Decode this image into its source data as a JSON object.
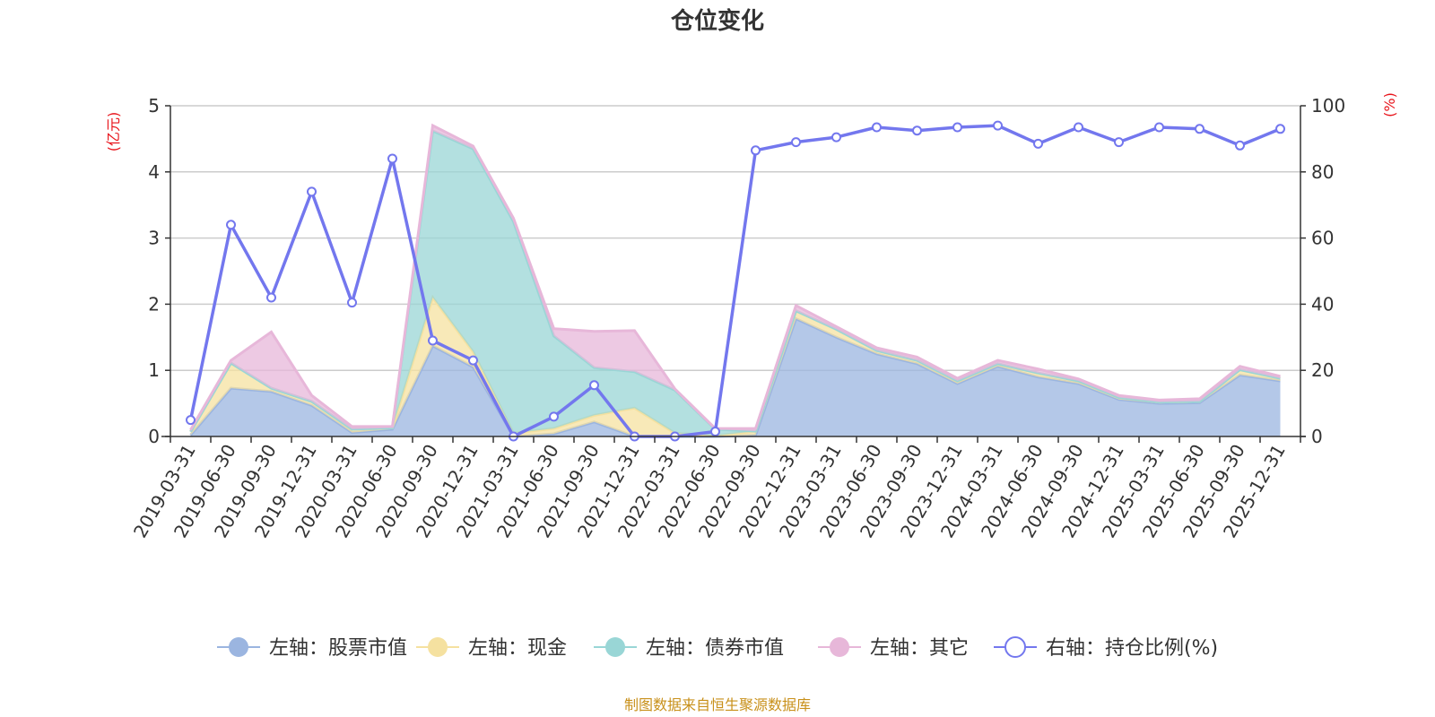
{
  "chart_data": {
    "type": "area",
    "title": "仓位变化",
    "left_unit": "(亿元)",
    "right_unit": "(%)",
    "categories": [
      "2019-03-31",
      "2019-06-30",
      "2019-09-30",
      "2019-12-31",
      "2020-03-31",
      "2020-06-30",
      "2020-09-30",
      "2020-12-31",
      "2021-03-31",
      "2021-06-30",
      "2021-09-30",
      "2021-12-31",
      "2022-03-31",
      "2022-06-30",
      "2022-09-30",
      "2022-12-31",
      "2023-03-31",
      "2023-06-30",
      "2023-09-30",
      "2023-12-31",
      "2024-03-31",
      "2024-06-30",
      "2024-09-30",
      "2024-12-31",
      "2025-03-31",
      "2025-06-30",
      "2025-09-30",
      "2025-12-31"
    ],
    "y_left": {
      "min": 0,
      "max": 5,
      "ticks": [
        0,
        1,
        2,
        3,
        4,
        5
      ]
    },
    "y_right": {
      "min": 0,
      "max": 100,
      "ticks": [
        0,
        20,
        40,
        60,
        80,
        100
      ]
    },
    "series": [
      {
        "name": "左轴：股票市值",
        "axis": "left",
        "stack": true,
        "color": "#9bb5e0",
        "values": [
          0.02,
          0.73,
          0.68,
          0.47,
          0.06,
          0.11,
          1.37,
          1.05,
          0.0,
          0.04,
          0.22,
          0.0,
          0.0,
          0.0,
          0.02,
          1.78,
          1.5,
          1.25,
          1.1,
          0.8,
          1.06,
          0.9,
          0.8,
          0.56,
          0.5,
          0.51,
          0.93,
          0.84
        ]
      },
      {
        "name": "左轴：现金",
        "axis": "left",
        "stack": true,
        "color": "#f5e1a0",
        "values": [
          0.05,
          0.38,
          0.05,
          0.06,
          0.05,
          0.02,
          0.73,
          0.23,
          0.05,
          0.08,
          0.1,
          0.43,
          0.05,
          0.01,
          0.06,
          0.12,
          0.12,
          0.05,
          0.05,
          0.04,
          0.04,
          0.06,
          0.04,
          0.03,
          0.02,
          0.02,
          0.08,
          0.04
        ]
      },
      {
        "name": "左轴：债券市值",
        "axis": "left",
        "stack": true,
        "color": "#99d6d6",
        "values": [
          0,
          0,
          0,
          0,
          0,
          0,
          2.52,
          3.07,
          3.2,
          1.4,
          0.72,
          0.55,
          0.65,
          0.1,
          0,
          0,
          0,
          0,
          0,
          0,
          0,
          0,
          0,
          0,
          0,
          0,
          0,
          0
        ]
      },
      {
        "name": "左轴：其它",
        "axis": "left",
        "stack": true,
        "color": "#e7b7d9",
        "values": [
          0.03,
          0.04,
          0.85,
          0.09,
          0.04,
          0.02,
          0.08,
          0.04,
          0.05,
          0.11,
          0.55,
          0.62,
          0.02,
          0.01,
          0.04,
          0.08,
          0.04,
          0.04,
          0.05,
          0.04,
          0.05,
          0.06,
          0.03,
          0.03,
          0.03,
          0.04,
          0.05,
          0.03
        ]
      },
      {
        "name": "右轴：持仓比例(%)",
        "axis": "right",
        "stack": false,
        "color": "#7377ee",
        "values": [
          5.0,
          64.0,
          42.0,
          74.0,
          40.5,
          84.0,
          29.0,
          23.0,
          0.0,
          6.0,
          15.5,
          0.0,
          0.0,
          1.5,
          86.5,
          89.0,
          90.5,
          93.5,
          92.5,
          93.5,
          94.0,
          88.5,
          93.5,
          89.0,
          93.5,
          93.0,
          88.0,
          93.0
        ]
      }
    ],
    "legend": {
      "position": "bottom"
    },
    "grid": true,
    "source": "制图数据来自恒生聚源数据库"
  }
}
